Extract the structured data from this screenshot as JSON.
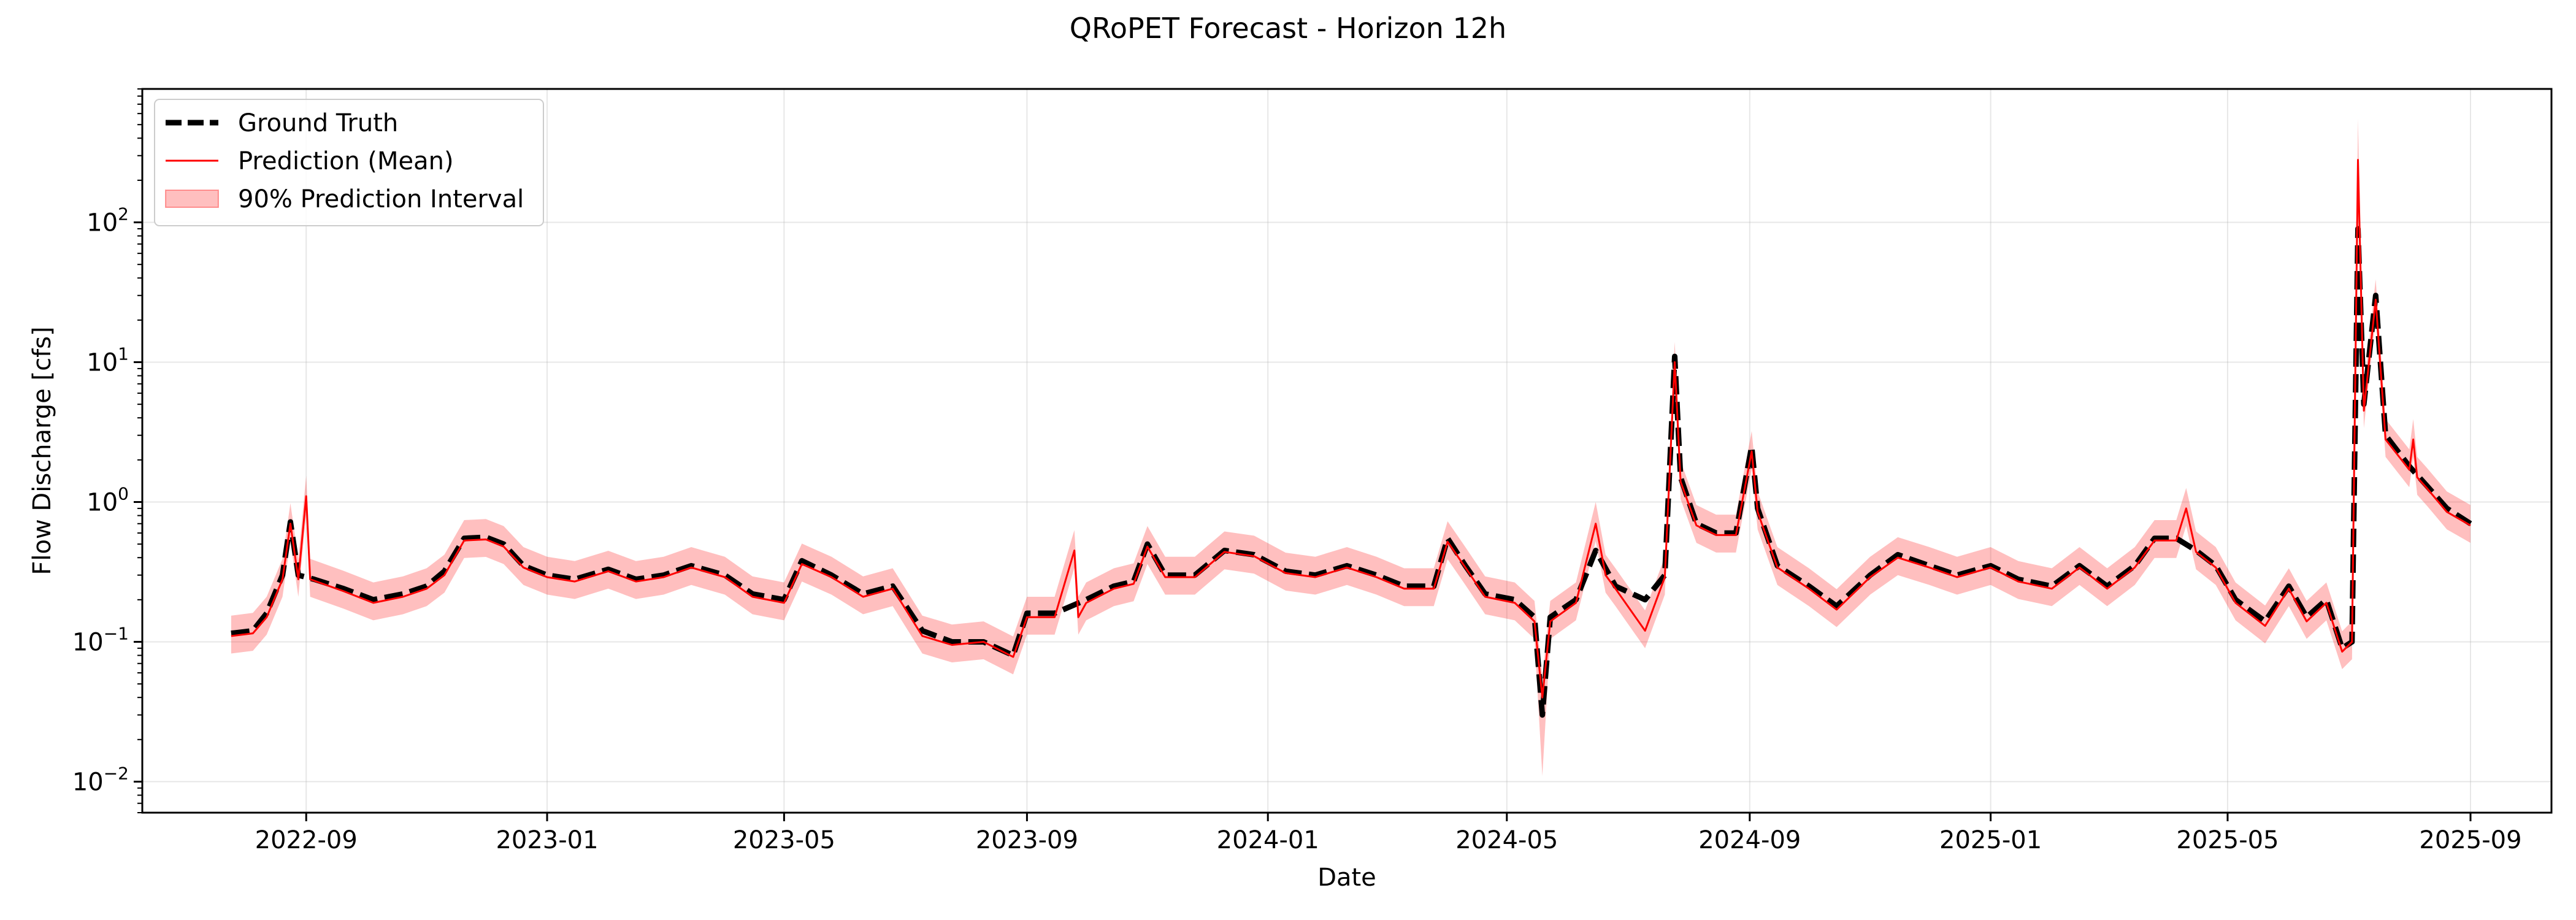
{
  "chart_data": {
    "type": "line",
    "title": "QRoPET Forecast - Horizon 12h",
    "xlabel": "Date",
    "ylabel": "Flow Discharge [cfs]",
    "yscale": "log",
    "ylim": [
      0.006,
      900
    ],
    "xlim": [
      "2022-06-10",
      "2025-10-12"
    ],
    "grid": true,
    "legend_position": "top-left",
    "x_ticks": [
      "2022-09",
      "2023-01",
      "2023-05",
      "2023-09",
      "2024-01",
      "2024-05",
      "2024-09",
      "2025-01",
      "2025-05",
      "2025-09"
    ],
    "y_ticks": [
      {
        "value": 0.01,
        "base": "10",
        "exp": "−2"
      },
      {
        "value": 0.1,
        "base": "10",
        "exp": "−1"
      },
      {
        "value": 1,
        "base": "10",
        "exp": "0"
      },
      {
        "value": 10,
        "base": "10",
        "exp": "1"
      },
      {
        "value": 100,
        "base": "10",
        "exp": "2"
      }
    ],
    "series": [
      {
        "name": "Ground Truth",
        "style": "dashed",
        "color": "#000000",
        "points": [
          [
            "2022-07-25",
            0.115
          ],
          [
            "2022-08-05",
            0.12
          ],
          [
            "2022-08-12",
            0.16
          ],
          [
            "2022-08-20",
            0.3
          ],
          [
            "2022-08-24",
            0.72
          ],
          [
            "2022-08-28",
            0.3
          ],
          [
            "2022-09-05",
            0.28
          ],
          [
            "2022-09-20",
            0.24
          ],
          [
            "2022-10-05",
            0.2
          ],
          [
            "2022-10-20",
            0.22
          ],
          [
            "2022-11-01",
            0.25
          ],
          [
            "2022-11-10",
            0.32
          ],
          [
            "2022-11-20",
            0.55
          ],
          [
            "2022-12-01",
            0.56
          ],
          [
            "2022-12-10",
            0.5
          ],
          [
            "2022-12-20",
            0.35
          ],
          [
            "2023-01-01",
            0.3
          ],
          [
            "2023-01-15",
            0.28
          ],
          [
            "2023-02-01",
            0.33
          ],
          [
            "2023-02-15",
            0.28
          ],
          [
            "2023-03-01",
            0.3
          ],
          [
            "2023-03-15",
            0.35
          ],
          [
            "2023-04-01",
            0.3
          ],
          [
            "2023-04-15",
            0.22
          ],
          [
            "2023-05-01",
            0.2
          ],
          [
            "2023-05-10",
            0.38
          ],
          [
            "2023-05-25",
            0.3
          ],
          [
            "2023-06-10",
            0.22
          ],
          [
            "2023-06-25",
            0.25
          ],
          [
            "2023-07-10",
            0.12
          ],
          [
            "2023-07-25",
            0.1
          ],
          [
            "2023-08-10",
            0.1
          ],
          [
            "2023-08-25",
            0.08
          ],
          [
            "2023-09-01",
            0.16
          ],
          [
            "2023-09-15",
            0.16
          ],
          [
            "2023-10-01",
            0.2
          ],
          [
            "2023-10-15",
            0.25
          ],
          [
            "2023-10-25",
            0.27
          ],
          [
            "2023-11-01",
            0.5
          ],
          [
            "2023-11-10",
            0.3
          ],
          [
            "2023-11-25",
            0.3
          ],
          [
            "2023-12-10",
            0.45
          ],
          [
            "2023-12-25",
            0.42
          ],
          [
            "2024-01-10",
            0.32
          ],
          [
            "2024-01-25",
            0.3
          ],
          [
            "2024-02-10",
            0.35
          ],
          [
            "2024-02-25",
            0.3
          ],
          [
            "2024-03-10",
            0.25
          ],
          [
            "2024-03-25",
            0.25
          ],
          [
            "2024-04-01",
            0.55
          ],
          [
            "2024-04-10",
            0.35
          ],
          [
            "2024-04-20",
            0.22
          ],
          [
            "2024-05-05",
            0.2
          ],
          [
            "2024-05-15",
            0.15
          ],
          [
            "2024-05-19",
            0.03
          ],
          [
            "2024-05-23",
            0.15
          ],
          [
            "2024-06-05",
            0.2
          ],
          [
            "2024-06-15",
            0.45
          ],
          [
            "2024-06-25",
            0.25
          ],
          [
            "2024-07-10",
            0.2
          ],
          [
            "2024-07-20",
            0.3
          ],
          [
            "2024-07-25",
            11.0
          ],
          [
            "2024-07-28",
            1.5
          ],
          [
            "2024-08-05",
            0.7
          ],
          [
            "2024-08-15",
            0.6
          ],
          [
            "2024-08-25",
            0.6
          ],
          [
            "2024-09-02",
            2.5
          ],
          [
            "2024-09-05",
            0.9
          ],
          [
            "2024-09-15",
            0.35
          ],
          [
            "2024-10-01",
            0.25
          ],
          [
            "2024-10-15",
            0.18
          ],
          [
            "2024-11-01",
            0.3
          ],
          [
            "2024-11-15",
            0.42
          ],
          [
            "2024-12-01",
            0.35
          ],
          [
            "2024-12-15",
            0.3
          ],
          [
            "2025-01-01",
            0.35
          ],
          [
            "2025-01-15",
            0.28
          ],
          [
            "2025-02-01",
            0.25
          ],
          [
            "2025-02-15",
            0.35
          ],
          [
            "2025-03-01",
            0.25
          ],
          [
            "2025-03-15",
            0.35
          ],
          [
            "2025-03-25",
            0.55
          ],
          [
            "2025-04-05",
            0.55
          ],
          [
            "2025-04-15",
            0.45
          ],
          [
            "2025-04-25",
            0.35
          ],
          [
            "2025-05-05",
            0.2
          ],
          [
            "2025-05-20",
            0.14
          ],
          [
            "2025-06-01",
            0.25
          ],
          [
            "2025-06-10",
            0.15
          ],
          [
            "2025-06-20",
            0.2
          ],
          [
            "2025-06-28",
            0.09
          ],
          [
            "2025-07-03",
            0.1
          ],
          [
            "2025-07-06",
            90.0
          ],
          [
            "2025-07-09",
            5.0
          ],
          [
            "2025-07-15",
            30.0
          ],
          [
            "2025-07-20",
            3.0
          ],
          [
            "2025-08-01",
            1.8
          ],
          [
            "2025-08-10",
            1.3
          ],
          [
            "2025-08-20",
            0.9
          ],
          [
            "2025-09-01",
            0.7
          ]
        ]
      },
      {
        "name": "Prediction (Mean)",
        "style": "solid",
        "color": "#ff0000",
        "points": [
          [
            "2022-07-25",
            0.11
          ],
          [
            "2022-08-05",
            0.115
          ],
          [
            "2022-08-12",
            0.15
          ],
          [
            "2022-08-20",
            0.28
          ],
          [
            "2022-08-24",
            0.7
          ],
          [
            "2022-08-28",
            0.28
          ],
          [
            "2022-09-01",
            1.1
          ],
          [
            "2022-09-03",
            0.28
          ],
          [
            "2022-09-20",
            0.23
          ],
          [
            "2022-10-05",
            0.19
          ],
          [
            "2022-10-20",
            0.21
          ],
          [
            "2022-11-01",
            0.24
          ],
          [
            "2022-11-10",
            0.3
          ],
          [
            "2022-11-20",
            0.53
          ],
          [
            "2022-12-01",
            0.54
          ],
          [
            "2022-12-10",
            0.48
          ],
          [
            "2022-12-20",
            0.34
          ],
          [
            "2023-01-01",
            0.29
          ],
          [
            "2023-01-15",
            0.27
          ],
          [
            "2023-02-01",
            0.32
          ],
          [
            "2023-02-15",
            0.27
          ],
          [
            "2023-03-01",
            0.29
          ],
          [
            "2023-03-15",
            0.34
          ],
          [
            "2023-04-01",
            0.29
          ],
          [
            "2023-04-15",
            0.21
          ],
          [
            "2023-05-01",
            0.19
          ],
          [
            "2023-05-10",
            0.36
          ],
          [
            "2023-05-25",
            0.29
          ],
          [
            "2023-06-10",
            0.21
          ],
          [
            "2023-06-25",
            0.24
          ],
          [
            "2023-07-10",
            0.11
          ],
          [
            "2023-07-25",
            0.095
          ],
          [
            "2023-08-10",
            0.1
          ],
          [
            "2023-08-25",
            0.078
          ],
          [
            "2023-09-01",
            0.15
          ],
          [
            "2023-09-15",
            0.15
          ],
          [
            "2023-09-25",
            0.45
          ],
          [
            "2023-09-27",
            0.15
          ],
          [
            "2023-10-01",
            0.19
          ],
          [
            "2023-10-15",
            0.24
          ],
          [
            "2023-10-25",
            0.26
          ],
          [
            "2023-11-01",
            0.48
          ],
          [
            "2023-11-10",
            0.29
          ],
          [
            "2023-11-25",
            0.29
          ],
          [
            "2023-12-10",
            0.44
          ],
          [
            "2023-12-25",
            0.41
          ],
          [
            "2024-01-10",
            0.31
          ],
          [
            "2024-01-25",
            0.29
          ],
          [
            "2024-02-10",
            0.34
          ],
          [
            "2024-02-25",
            0.29
          ],
          [
            "2024-03-10",
            0.24
          ],
          [
            "2024-03-25",
            0.24
          ],
          [
            "2024-04-01",
            0.52
          ],
          [
            "2024-04-10",
            0.34
          ],
          [
            "2024-04-20",
            0.21
          ],
          [
            "2024-05-05",
            0.19
          ],
          [
            "2024-05-15",
            0.14
          ],
          [
            "2024-05-19",
            0.04
          ],
          [
            "2024-05-23",
            0.14
          ],
          [
            "2024-06-05",
            0.19
          ],
          [
            "2024-06-15",
            0.7
          ],
          [
            "2024-06-20",
            0.3
          ],
          [
            "2024-06-25",
            0.24
          ],
          [
            "2024-07-10",
            0.12
          ],
          [
            "2024-07-20",
            0.29
          ],
          [
            "2024-07-25",
            10.0
          ],
          [
            "2024-07-28",
            1.4
          ],
          [
            "2024-08-05",
            0.68
          ],
          [
            "2024-08-15",
            0.58
          ],
          [
            "2024-08-25",
            0.58
          ],
          [
            "2024-09-02",
            2.3
          ],
          [
            "2024-09-05",
            0.85
          ],
          [
            "2024-09-15",
            0.34
          ],
          [
            "2024-10-01",
            0.24
          ],
          [
            "2024-10-15",
            0.17
          ],
          [
            "2024-11-01",
            0.29
          ],
          [
            "2024-11-15",
            0.4
          ],
          [
            "2024-12-01",
            0.34
          ],
          [
            "2024-12-15",
            0.29
          ],
          [
            "2025-01-01",
            0.34
          ],
          [
            "2025-01-15",
            0.27
          ],
          [
            "2025-02-01",
            0.24
          ],
          [
            "2025-02-15",
            0.34
          ],
          [
            "2025-03-01",
            0.24
          ],
          [
            "2025-03-15",
            0.34
          ],
          [
            "2025-03-25",
            0.53
          ],
          [
            "2025-04-05",
            0.53
          ],
          [
            "2025-04-10",
            0.9
          ],
          [
            "2025-04-15",
            0.44
          ],
          [
            "2025-04-25",
            0.34
          ],
          [
            "2025-05-05",
            0.19
          ],
          [
            "2025-05-20",
            0.13
          ],
          [
            "2025-06-01",
            0.24
          ],
          [
            "2025-06-10",
            0.14
          ],
          [
            "2025-06-20",
            0.19
          ],
          [
            "2025-06-28",
            0.085
          ],
          [
            "2025-07-03",
            0.1
          ],
          [
            "2025-07-06",
            280.0
          ],
          [
            "2025-07-09",
            4.5
          ],
          [
            "2025-07-15",
            28.0
          ],
          [
            "2025-07-20",
            2.8
          ],
          [
            "2025-08-01",
            1.7
          ],
          [
            "2025-08-03",
            2.8
          ],
          [
            "2025-08-05",
            1.5
          ],
          [
            "2025-08-10",
            1.25
          ],
          [
            "2025-08-20",
            0.85
          ],
          [
            "2025-09-01",
            0.68
          ]
        ]
      }
    ],
    "interval": {
      "name": "90% Prediction Interval",
      "color": "#ff0000",
      "opacity": 0.25,
      "lower_factor": 0.75,
      "upper_factor": 1.4,
      "extra": [
        {
          "date": "2025-07-06",
          "upper": 550
        },
        {
          "date": "2024-05-19",
          "lower": 0.011
        },
        {
          "date": "2024-06-15",
          "upper": 1.0
        }
      ]
    }
  }
}
